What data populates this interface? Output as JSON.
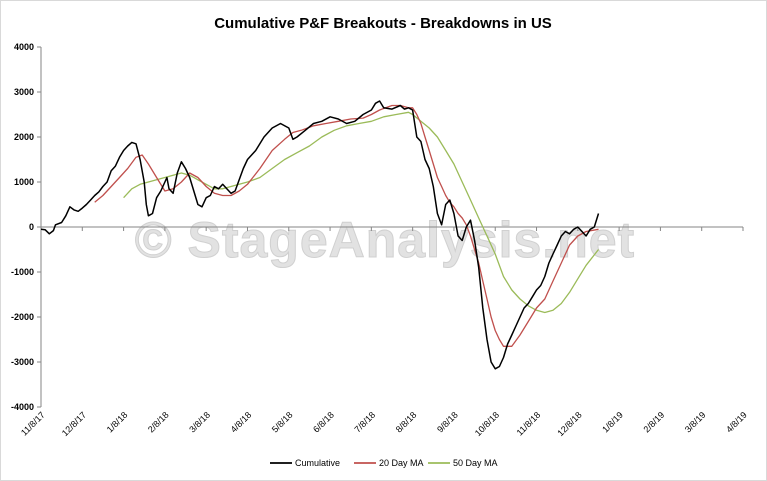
{
  "chart_data": {
    "type": "line",
    "title": "Cumulative P&F Breakouts - Breakdowns in US",
    "watermark": "© StageAnalysis.net",
    "xlabel": "",
    "ylabel": "",
    "ylim": [
      -4000,
      4000
    ],
    "yticks": [
      4000,
      3000,
      2000,
      1000,
      0,
      -1000,
      -2000,
      -3000,
      -4000
    ],
    "x_tick_labels": [
      "11/8/17",
      "12/8/17",
      "1/8/18",
      "2/8/18",
      "3/8/18",
      "4/8/18",
      "5/8/18",
      "6/8/18",
      "7/8/18",
      "8/8/18",
      "9/8/18",
      "10/8/18",
      "11/8/18",
      "12/8/18",
      "1/8/19",
      "2/8/19",
      "3/8/19",
      "4/8/19"
    ],
    "x_domain": [
      0,
      17
    ],
    "legend_position": "bottom",
    "series": [
      {
        "name": "Cumulative",
        "color": "#000000",
        "points": [
          [
            0.0,
            -50
          ],
          [
            0.1,
            -60
          ],
          [
            0.2,
            -150
          ],
          [
            0.3,
            -80
          ],
          [
            0.35,
            50
          ],
          [
            0.5,
            100
          ],
          [
            0.6,
            250
          ],
          [
            0.7,
            450
          ],
          [
            0.8,
            380
          ],
          [
            0.9,
            350
          ],
          [
            1.0,
            420
          ],
          [
            1.1,
            500
          ],
          [
            1.2,
            600
          ],
          [
            1.3,
            700
          ],
          [
            1.4,
            780
          ],
          [
            1.5,
            900
          ],
          [
            1.6,
            1000
          ],
          [
            1.7,
            1250
          ],
          [
            1.8,
            1350
          ],
          [
            1.9,
            1550
          ],
          [
            2.0,
            1700
          ],
          [
            2.1,
            1800
          ],
          [
            2.2,
            1880
          ],
          [
            2.3,
            1850
          ],
          [
            2.4,
            1500
          ],
          [
            2.5,
            1000
          ],
          [
            2.55,
            500
          ],
          [
            2.6,
            250
          ],
          [
            2.7,
            300
          ],
          [
            2.8,
            650
          ],
          [
            2.9,
            800
          ],
          [
            3.0,
            1000
          ],
          [
            3.05,
            1100
          ],
          [
            3.1,
            850
          ],
          [
            3.2,
            750
          ],
          [
            3.3,
            1200
          ],
          [
            3.4,
            1450
          ],
          [
            3.5,
            1300
          ],
          [
            3.6,
            1100
          ],
          [
            3.7,
            800
          ],
          [
            3.8,
            500
          ],
          [
            3.9,
            450
          ],
          [
            4.0,
            650
          ],
          [
            4.1,
            700
          ],
          [
            4.2,
            900
          ],
          [
            4.3,
            850
          ],
          [
            4.4,
            950
          ],
          [
            4.5,
            850
          ],
          [
            4.6,
            750
          ],
          [
            4.7,
            800
          ],
          [
            4.8,
            1050
          ],
          [
            4.9,
            1300
          ],
          [
            5.0,
            1500
          ],
          [
            5.2,
            1700
          ],
          [
            5.4,
            2000
          ],
          [
            5.6,
            2200
          ],
          [
            5.8,
            2300
          ],
          [
            6.0,
            2200
          ],
          [
            6.1,
            1950
          ],
          [
            6.2,
            2000
          ],
          [
            6.4,
            2150
          ],
          [
            6.6,
            2300
          ],
          [
            6.8,
            2350
          ],
          [
            7.0,
            2450
          ],
          [
            7.2,
            2400
          ],
          [
            7.4,
            2300
          ],
          [
            7.6,
            2350
          ],
          [
            7.8,
            2500
          ],
          [
            8.0,
            2600
          ],
          [
            8.1,
            2750
          ],
          [
            8.2,
            2800
          ],
          [
            8.3,
            2650
          ],
          [
            8.5,
            2620
          ],
          [
            8.7,
            2700
          ],
          [
            8.8,
            2620
          ],
          [
            8.9,
            2650
          ],
          [
            9.0,
            2600
          ],
          [
            9.1,
            2000
          ],
          [
            9.2,
            1900
          ],
          [
            9.3,
            1500
          ],
          [
            9.4,
            1300
          ],
          [
            9.5,
            900
          ],
          [
            9.6,
            300
          ],
          [
            9.7,
            50
          ],
          [
            9.8,
            500
          ],
          [
            9.9,
            600
          ],
          [
            10.0,
            300
          ],
          [
            10.1,
            -200
          ],
          [
            10.2,
            -300
          ],
          [
            10.3,
            0
          ],
          [
            10.4,
            150
          ],
          [
            10.5,
            -300
          ],
          [
            10.6,
            -900
          ],
          [
            10.7,
            -1800
          ],
          [
            10.8,
            -2500
          ],
          [
            10.9,
            -3000
          ],
          [
            11.0,
            -3150
          ],
          [
            11.1,
            -3100
          ],
          [
            11.2,
            -2900
          ],
          [
            11.3,
            -2600
          ],
          [
            11.4,
            -2400
          ],
          [
            11.5,
            -2200
          ],
          [
            11.6,
            -2000
          ],
          [
            11.7,
            -1800
          ],
          [
            11.8,
            -1700
          ],
          [
            11.9,
            -1550
          ],
          [
            12.0,
            -1400
          ],
          [
            12.1,
            -1300
          ],
          [
            12.2,
            -1100
          ],
          [
            12.3,
            -800
          ],
          [
            12.4,
            -600
          ],
          [
            12.5,
            -400
          ],
          [
            12.6,
            -200
          ],
          [
            12.7,
            -100
          ],
          [
            12.8,
            -150
          ],
          [
            12.9,
            -50
          ],
          [
            13.0,
            0
          ],
          [
            13.1,
            -100
          ],
          [
            13.2,
            -200
          ],
          [
            13.3,
            -50
          ],
          [
            13.4,
            0
          ],
          [
            13.5,
            300
          ]
        ]
      },
      {
        "name": "20 Day MA",
        "color": "#c0504d",
        "points": [
          [
            1.3,
            550
          ],
          [
            1.5,
            700
          ],
          [
            1.7,
            900
          ],
          [
            1.9,
            1100
          ],
          [
            2.1,
            1300
          ],
          [
            2.3,
            1550
          ],
          [
            2.45,
            1600
          ],
          [
            2.6,
            1400
          ],
          [
            2.8,
            1100
          ],
          [
            3.0,
            800
          ],
          [
            3.2,
            850
          ],
          [
            3.4,
            1000
          ],
          [
            3.6,
            1200
          ],
          [
            3.8,
            1100
          ],
          [
            4.0,
            900
          ],
          [
            4.2,
            750
          ],
          [
            4.4,
            700
          ],
          [
            4.6,
            700
          ],
          [
            4.8,
            800
          ],
          [
            5.0,
            950
          ],
          [
            5.3,
            1300
          ],
          [
            5.6,
            1700
          ],
          [
            5.9,
            1950
          ],
          [
            6.1,
            2100
          ],
          [
            6.3,
            2150
          ],
          [
            6.6,
            2250
          ],
          [
            6.9,
            2300
          ],
          [
            7.2,
            2350
          ],
          [
            7.5,
            2400
          ],
          [
            7.8,
            2420
          ],
          [
            8.0,
            2500
          ],
          [
            8.2,
            2600
          ],
          [
            8.5,
            2700
          ],
          [
            8.7,
            2700
          ],
          [
            8.9,
            2650
          ],
          [
            9.0,
            2650
          ],
          [
            9.1,
            2500
          ],
          [
            9.2,
            2300
          ],
          [
            9.3,
            2000
          ],
          [
            9.4,
            1700
          ],
          [
            9.5,
            1400
          ],
          [
            9.6,
            1100
          ],
          [
            9.7,
            900
          ],
          [
            9.8,
            700
          ],
          [
            9.9,
            550
          ],
          [
            10.0,
            450
          ],
          [
            10.1,
            300
          ],
          [
            10.2,
            200
          ],
          [
            10.3,
            50
          ],
          [
            10.4,
            -200
          ],
          [
            10.5,
            -500
          ],
          [
            10.6,
            -800
          ],
          [
            10.7,
            -1200
          ],
          [
            10.8,
            -1600
          ],
          [
            10.9,
            -2000
          ],
          [
            11.0,
            -2300
          ],
          [
            11.1,
            -2500
          ],
          [
            11.2,
            -2650
          ],
          [
            11.4,
            -2650
          ],
          [
            11.6,
            -2400
          ],
          [
            11.8,
            -2100
          ],
          [
            12.0,
            -1800
          ],
          [
            12.2,
            -1600
          ],
          [
            12.4,
            -1200
          ],
          [
            12.6,
            -800
          ],
          [
            12.8,
            -400
          ],
          [
            13.0,
            -200
          ],
          [
            13.2,
            -100
          ],
          [
            13.5,
            -50
          ]
        ]
      },
      {
        "name": "50 Day MA",
        "color": "#9bbb59",
        "points": [
          [
            2.0,
            650
          ],
          [
            2.2,
            850
          ],
          [
            2.4,
            950
          ],
          [
            2.6,
            1000
          ],
          [
            2.8,
            1050
          ],
          [
            3.0,
            1100
          ],
          [
            3.2,
            1150
          ],
          [
            3.4,
            1200
          ],
          [
            3.6,
            1150
          ],
          [
            3.8,
            1050
          ],
          [
            4.0,
            950
          ],
          [
            4.2,
            850
          ],
          [
            4.4,
            850
          ],
          [
            4.6,
            900
          ],
          [
            4.8,
            950
          ],
          [
            5.0,
            1000
          ],
          [
            5.3,
            1100
          ],
          [
            5.6,
            1300
          ],
          [
            5.9,
            1500
          ],
          [
            6.2,
            1650
          ],
          [
            6.5,
            1800
          ],
          [
            6.8,
            2000
          ],
          [
            7.1,
            2150
          ],
          [
            7.4,
            2250
          ],
          [
            7.7,
            2300
          ],
          [
            8.0,
            2350
          ],
          [
            8.3,
            2450
          ],
          [
            8.6,
            2500
          ],
          [
            8.9,
            2550
          ],
          [
            9.0,
            2500
          ],
          [
            9.2,
            2350
          ],
          [
            9.4,
            2200
          ],
          [
            9.6,
            2000
          ],
          [
            9.8,
            1700
          ],
          [
            10.0,
            1400
          ],
          [
            10.2,
            1000
          ],
          [
            10.4,
            600
          ],
          [
            10.6,
            200
          ],
          [
            10.8,
            -200
          ],
          [
            11.0,
            -600
          ],
          [
            11.2,
            -1100
          ],
          [
            11.4,
            -1400
          ],
          [
            11.6,
            -1600
          ],
          [
            11.8,
            -1750
          ],
          [
            12.0,
            -1850
          ],
          [
            12.2,
            -1900
          ],
          [
            12.4,
            -1850
          ],
          [
            12.6,
            -1700
          ],
          [
            12.8,
            -1450
          ],
          [
            13.0,
            -1150
          ],
          [
            13.2,
            -850
          ],
          [
            13.5,
            -500
          ]
        ]
      }
    ]
  }
}
